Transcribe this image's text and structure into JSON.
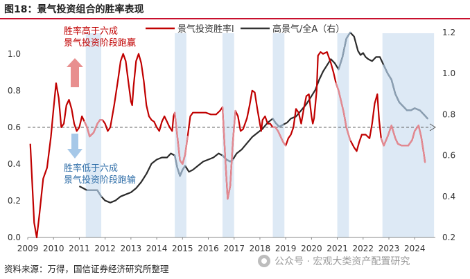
{
  "header": {
    "title": "图18：景气投资组合的胜率表现"
  },
  "footer": {
    "source": "资料来源：万得，国信证券经济研究所整理"
  },
  "watermark": {
    "text": "公众号 · 宏观大类资产配置研究",
    "icon": "wechat-icon"
  },
  "chart_data": {
    "type": "line",
    "title": "景气投资组合的胜率表现",
    "legend": [
      {
        "key": "win",
        "label": "景气投资胜率l",
        "color": "#c00000"
      },
      {
        "key": "ratio",
        "label": "高景气/全A（右）",
        "color": "#333333"
      }
    ],
    "legend_position": "top",
    "x_ticks": [
      "2009",
      "2010",
      "2011",
      "2012",
      "2013",
      "2014",
      "2015",
      "2016",
      "2017",
      "2018",
      "2019",
      "2020",
      "2021",
      "2022",
      "2023",
      "2024"
    ],
    "xlim": [
      2009,
      2024.8
    ],
    "left_axis": {
      "ticks": [
        "0.0",
        "0.2",
        "0.4",
        "0.6",
        "0.8",
        "1.0"
      ],
      "ylim": [
        0,
        1.15
      ]
    },
    "right_axis": {
      "ticks": [
        "0.2",
        "0.4",
        "0.6",
        "0.8",
        "1.0",
        "1.2"
      ],
      "ylim": [
        0.2,
        1.23
      ]
    },
    "reference_line": {
      "value": 0.6,
      "axis": "left",
      "style": "dashed-arrow"
    },
    "shaded_periods": [
      [
        2011.25,
        2011.85
      ],
      [
        2014.7,
        2015.15
      ],
      [
        2016.55,
        2017.0
      ],
      [
        2018.5,
        2018.95
      ],
      [
        2021.0,
        2021.45
      ],
      [
        2022.75,
        2024.75
      ]
    ],
    "series": [
      {
        "name": "景气投资胜率l",
        "axis": "left",
        "color": "#c00000",
        "points": [
          [
            2009.1,
            0.51
          ],
          [
            2009.25,
            0.08
          ],
          [
            2009.35,
            0.0
          ],
          [
            2009.45,
            0.12
          ],
          [
            2009.6,
            0.32
          ],
          [
            2009.75,
            0.38
          ],
          [
            2009.9,
            0.55
          ],
          [
            2010.0,
            0.7
          ],
          [
            2010.1,
            0.84
          ],
          [
            2010.2,
            0.76
          ],
          [
            2010.3,
            0.6
          ],
          [
            2010.4,
            0.62
          ],
          [
            2010.5,
            0.72
          ],
          [
            2010.6,
            0.75
          ],
          [
            2010.7,
            0.7
          ],
          [
            2010.8,
            0.62
          ],
          [
            2010.9,
            0.58
          ],
          [
            2011.0,
            0.6
          ],
          [
            2011.1,
            0.66
          ],
          [
            2011.2,
            0.63
          ],
          [
            2011.3,
            0.6
          ],
          [
            2011.4,
            0.55
          ],
          [
            2011.55,
            0.57
          ],
          [
            2011.7,
            0.62
          ],
          [
            2011.8,
            0.64
          ],
          [
            2011.9,
            0.64
          ],
          [
            2012.0,
            0.62
          ],
          [
            2012.1,
            0.58
          ],
          [
            2012.2,
            0.6
          ],
          [
            2012.35,
            0.72
          ],
          [
            2012.5,
            0.86
          ],
          [
            2012.6,
            0.96
          ],
          [
            2012.7,
            1.0
          ],
          [
            2012.8,
            0.96
          ],
          [
            2012.9,
            0.85
          ],
          [
            2013.0,
            0.74
          ],
          [
            2013.05,
            0.72
          ],
          [
            2013.1,
            0.82
          ],
          [
            2013.2,
            0.96
          ],
          [
            2013.3,
            1.0
          ],
          [
            2013.4,
            0.95
          ],
          [
            2013.5,
            0.85
          ],
          [
            2013.6,
            0.72
          ],
          [
            2013.7,
            0.66
          ],
          [
            2013.8,
            0.64
          ],
          [
            2013.9,
            0.63
          ],
          [
            2014.0,
            0.6
          ],
          [
            2014.1,
            0.58
          ],
          [
            2014.2,
            0.63
          ],
          [
            2014.3,
            0.66
          ],
          [
            2014.4,
            0.63
          ],
          [
            2014.5,
            0.6
          ],
          [
            2014.6,
            0.58
          ],
          [
            2014.65,
            0.66
          ],
          [
            2014.7,
            0.68
          ],
          [
            2014.8,
            0.55
          ],
          [
            2014.9,
            0.42
          ],
          [
            2015.0,
            0.4
          ],
          [
            2015.1,
            0.45
          ],
          [
            2015.2,
            0.55
          ],
          [
            2015.3,
            0.66
          ],
          [
            2015.4,
            0.68
          ],
          [
            2015.5,
            0.68
          ],
          [
            2015.7,
            0.68
          ],
          [
            2015.9,
            0.68
          ],
          [
            2016.1,
            0.67
          ],
          [
            2016.3,
            0.67
          ],
          [
            2016.45,
            0.69
          ],
          [
            2016.55,
            0.71
          ],
          [
            2016.65,
            0.45
          ],
          [
            2016.75,
            0.21
          ],
          [
            2016.85,
            0.28
          ],
          [
            2016.95,
            0.52
          ],
          [
            2017.05,
            0.69
          ],
          [
            2017.15,
            0.66
          ],
          [
            2017.25,
            0.58
          ],
          [
            2017.35,
            0.59
          ],
          [
            2017.5,
            0.65
          ],
          [
            2017.6,
            0.72
          ],
          [
            2017.7,
            0.8
          ],
          [
            2017.8,
            0.79
          ],
          [
            2017.9,
            0.7
          ],
          [
            2018.0,
            0.62
          ],
          [
            2018.05,
            0.58
          ],
          [
            2018.1,
            0.64
          ],
          [
            2018.2,
            0.66
          ],
          [
            2018.3,
            0.62
          ],
          [
            2018.4,
            0.62
          ],
          [
            2018.5,
            0.6
          ],
          [
            2018.6,
            0.6
          ],
          [
            2018.7,
            0.58
          ],
          [
            2018.8,
            0.55
          ],
          [
            2018.9,
            0.52
          ],
          [
            2019.0,
            0.5
          ],
          [
            2019.1,
            0.54
          ],
          [
            2019.2,
            0.56
          ],
          [
            2019.3,
            0.6
          ],
          [
            2019.4,
            0.7
          ],
          [
            2019.5,
            0.68
          ],
          [
            2019.6,
            0.62
          ],
          [
            2019.7,
            0.7
          ],
          [
            2019.8,
            0.77
          ],
          [
            2019.9,
            0.78
          ],
          [
            2020.0,
            0.66
          ],
          [
            2020.05,
            0.62
          ],
          [
            2020.1,
            0.65
          ],
          [
            2020.2,
            0.8
          ],
          [
            2020.25,
            0.99
          ],
          [
            2020.35,
            1.01
          ],
          [
            2020.45,
            1.0
          ],
          [
            2020.6,
            1.01
          ],
          [
            2020.75,
            0.95
          ],
          [
            2020.85,
            0.9
          ],
          [
            2020.95,
            0.84
          ],
          [
            2021.05,
            0.8
          ],
          [
            2021.15,
            0.74
          ],
          [
            2021.25,
            0.68
          ],
          [
            2021.35,
            0.6
          ],
          [
            2021.5,
            0.53
          ],
          [
            2021.65,
            0.49
          ],
          [
            2021.75,
            0.47
          ],
          [
            2021.85,
            0.52
          ],
          [
            2021.95,
            0.56
          ],
          [
            2022.1,
            0.56
          ],
          [
            2022.25,
            0.54
          ],
          [
            2022.35,
            0.62
          ],
          [
            2022.45,
            0.73
          ],
          [
            2022.55,
            0.78
          ],
          [
            2022.62,
            0.64
          ],
          [
            2022.7,
            0.54
          ],
          [
            2022.8,
            0.5
          ],
          [
            2022.95,
            0.55
          ],
          [
            2023.1,
            0.61
          ],
          [
            2023.25,
            0.54
          ],
          [
            2023.35,
            0.51
          ],
          [
            2023.5,
            0.5
          ],
          [
            2023.75,
            0.5
          ],
          [
            2023.9,
            0.53
          ],
          [
            2024.0,
            0.58
          ],
          [
            2024.15,
            0.61
          ],
          [
            2024.25,
            0.55
          ],
          [
            2024.35,
            0.46
          ],
          [
            2024.4,
            0.41
          ]
        ]
      },
      {
        "name": "高景气/全A（右）",
        "axis": "right",
        "color": "#333333",
        "points": [
          [
            2011.0,
            0.45
          ],
          [
            2011.15,
            0.44
          ],
          [
            2011.3,
            0.43
          ],
          [
            2011.5,
            0.43
          ],
          [
            2011.7,
            0.43
          ],
          [
            2011.85,
            0.4
          ],
          [
            2012.0,
            0.38
          ],
          [
            2012.2,
            0.37
          ],
          [
            2012.4,
            0.38
          ],
          [
            2012.6,
            0.4
          ],
          [
            2012.8,
            0.41
          ],
          [
            2013.0,
            0.42
          ],
          [
            2013.2,
            0.44
          ],
          [
            2013.4,
            0.47
          ],
          [
            2013.6,
            0.51
          ],
          [
            2013.8,
            0.56
          ],
          [
            2014.0,
            0.58
          ],
          [
            2014.2,
            0.59
          ],
          [
            2014.4,
            0.59
          ],
          [
            2014.55,
            0.61
          ],
          [
            2014.7,
            0.6
          ],
          [
            2014.8,
            0.54
          ],
          [
            2014.9,
            0.5
          ],
          [
            2015.0,
            0.53
          ],
          [
            2015.1,
            0.55
          ],
          [
            2015.25,
            0.52
          ],
          [
            2015.4,
            0.53
          ],
          [
            2015.6,
            0.55
          ],
          [
            2015.8,
            0.57
          ],
          [
            2016.0,
            0.58
          ],
          [
            2016.2,
            0.59
          ],
          [
            2016.4,
            0.61
          ],
          [
            2016.55,
            0.6
          ],
          [
            2016.7,
            0.58
          ],
          [
            2016.85,
            0.57
          ],
          [
            2016.95,
            0.58
          ],
          [
            2017.1,
            0.61
          ],
          [
            2017.3,
            0.63
          ],
          [
            2017.5,
            0.66
          ],
          [
            2017.7,
            0.69
          ],
          [
            2017.9,
            0.71
          ],
          [
            2018.1,
            0.73
          ],
          [
            2018.3,
            0.76
          ],
          [
            2018.5,
            0.78
          ],
          [
            2018.6,
            0.76
          ],
          [
            2018.75,
            0.74
          ],
          [
            2018.9,
            0.75
          ],
          [
            2019.05,
            0.76
          ],
          [
            2019.2,
            0.78
          ],
          [
            2019.4,
            0.79
          ],
          [
            2019.6,
            0.82
          ],
          [
            2019.8,
            0.85
          ],
          [
            2020.0,
            0.89
          ],
          [
            2020.15,
            0.92
          ],
          [
            2020.3,
            0.97
          ],
          [
            2020.45,
            1.01
          ],
          [
            2020.6,
            1.04
          ],
          [
            2020.75,
            1.07
          ],
          [
            2020.9,
            1.05
          ],
          [
            2021.05,
            1.02
          ],
          [
            2021.2,
            1.08
          ],
          [
            2021.35,
            1.17
          ],
          [
            2021.5,
            1.2
          ],
          [
            2021.65,
            1.18
          ],
          [
            2021.8,
            1.11
          ],
          [
            2021.9,
            1.09
          ],
          [
            2022.0,
            1.1
          ],
          [
            2022.1,
            1.08
          ],
          [
            2022.2,
            1.07
          ],
          [
            2022.35,
            1.06
          ],
          [
            2022.5,
            1.08
          ],
          [
            2022.65,
            1.08
          ],
          [
            2022.8,
            1.04
          ],
          [
            2022.95,
            1.0
          ],
          [
            2023.1,
            0.97
          ],
          [
            2023.25,
            0.9
          ],
          [
            2023.4,
            0.86
          ],
          [
            2023.55,
            0.84
          ],
          [
            2023.7,
            0.82
          ],
          [
            2023.85,
            0.82
          ],
          [
            2024.0,
            0.83
          ],
          [
            2024.2,
            0.82
          ],
          [
            2024.35,
            0.8
          ],
          [
            2024.5,
            0.78
          ]
        ]
      }
    ],
    "annotations": {
      "above": [
        "胜率高于六成",
        "景气投资阶段跑赢"
      ],
      "below": [
        "胜率低于六成",
        "景气投资阶段跑输"
      ]
    }
  }
}
